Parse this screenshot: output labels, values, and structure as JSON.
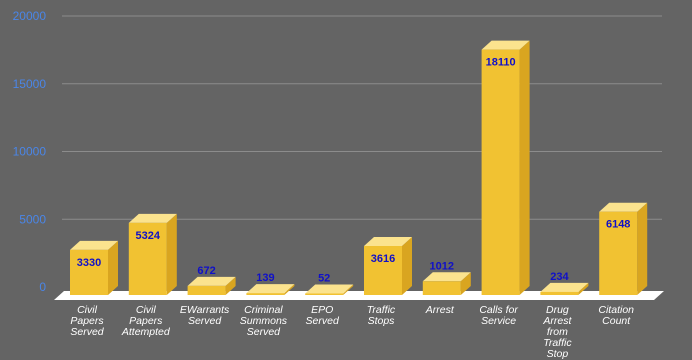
{
  "chart_data": {
    "type": "bar",
    "style": "3d",
    "categories": [
      "Civil Papers Served",
      "Civil Papers Attempted",
      "EWarrants Served",
      "Criminal Summons Served",
      "EPO Served",
      "Traffic Stops",
      "Arrest",
      "Calls for Service",
      "Drug Arrest from Traffic Stop",
      "Citation Count"
    ],
    "category_lines": [
      [
        "Civil",
        "Papers",
        "Served"
      ],
      [
        "Civil",
        "Papers",
        "Attempted"
      ],
      [
        "EWarrants",
        "Served"
      ],
      [
        "Criminal",
        "Summons",
        "Served"
      ],
      [
        "EPO",
        "Served"
      ],
      [
        "Traffic",
        "Stops"
      ],
      [
        "Arrest"
      ],
      [
        "Calls for",
        "Service"
      ],
      [
        "Drug",
        "Arrest",
        "from",
        "Traffic",
        "Stop"
      ],
      [
        "Citation",
        "Count"
      ]
    ],
    "values": [
      3330,
      5324,
      672,
      139,
      52,
      3616,
      1012,
      18110,
      234,
      6148
    ],
    "value_labels": [
      "3330",
      "5324",
      "672",
      "139",
      "52",
      "3616",
      "1012",
      "18110",
      "234",
      "6148"
    ],
    "y_ticks": [
      0,
      5000,
      10000,
      15000,
      20000
    ],
    "y_tick_labels": [
      "0",
      "5000",
      "10000",
      "15000",
      "20000"
    ],
    "ylim": [
      0,
      20000
    ],
    "grid": true,
    "legend": "none",
    "title": "",
    "xlabel": "",
    "ylabel": ""
  },
  "colors": {
    "background": "#646464",
    "bar_front": "#f1c232",
    "bar_top": "#fbe38e",
    "bar_side": "#d9a520",
    "floor": "#ffffff",
    "tick_label": "#4a86e8",
    "value_label": "#1010c8",
    "category_label": "#ffffff"
  }
}
